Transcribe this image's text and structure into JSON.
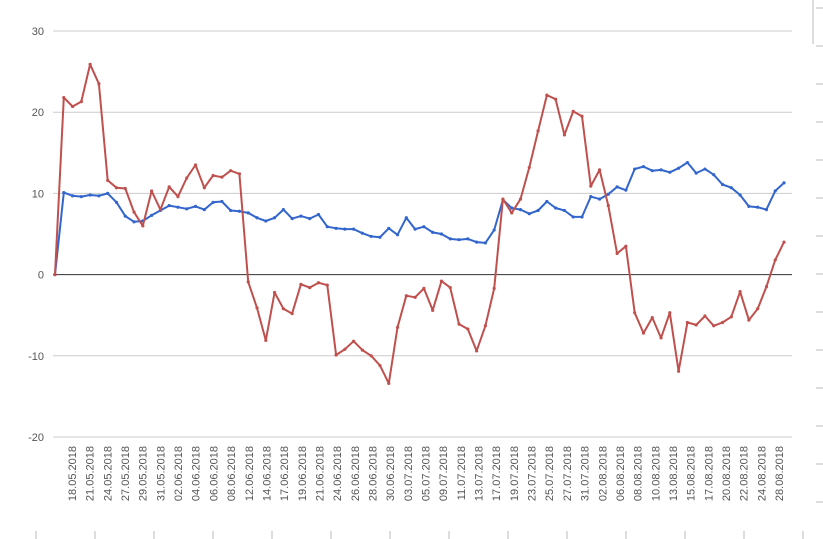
{
  "chart_data": {
    "type": "line",
    "title": "",
    "xlabel": "",
    "ylabel": "",
    "ylim": [
      -20,
      30
    ],
    "yticks": [
      -20,
      -10,
      0,
      10,
      20,
      30
    ],
    "grid": true,
    "legend": "none",
    "x_tick_labels": [
      "18.05.2018",
      "21.05.2018",
      "24.05.2018",
      "27.05.2018",
      "29.05.2018",
      "31.05.2018",
      "02.06.2018",
      "04.06.2018",
      "06.06.2018",
      "08.06.2018",
      "12.06.2018",
      "14.06.2018",
      "17.06.2018",
      "19.06.2018",
      "21.06.2018",
      "24.06.2018",
      "26.06.2018",
      "28.06.2018",
      "30.06.2018",
      "03.07.2018",
      "05.07.2018",
      "09.07.2018",
      "11.07.2018",
      "13.07.2018",
      "17.07.2018",
      "19.07.2018",
      "23.07.2018",
      "25.07.2018",
      "27.07.2018",
      "31.07.2018",
      "02.08.2018",
      "06.08.2018",
      "08.08.2018",
      "10.08.2018",
      "13.08.2018",
      "15.08.2018",
      "17.08.2018",
      "20.08.2018",
      "22.08.2018",
      "24.08.2018",
      "28.08.2018"
    ],
    "series": [
      {
        "color": "#3366cc",
        "values": [
          0,
          10.1,
          9.7,
          9.6,
          9.8,
          9.7,
          10.0,
          8.9,
          7.2,
          6.5,
          6.6,
          7.3,
          7.9,
          8.5,
          8.3,
          8.1,
          8.4,
          8.0,
          8.9,
          9.0,
          7.9,
          7.8,
          7.6,
          7.0,
          6.6,
          7.0,
          8.0,
          6.9,
          7.2,
          6.9,
          7.4,
          5.9,
          5.7,
          5.6,
          5.6,
          5.1,
          4.7,
          4.6,
          5.7,
          4.9,
          7.0,
          5.6,
          5.9,
          5.2,
          5.0,
          4.4,
          4.3,
          4.4,
          4.0,
          3.9,
          5.5,
          9.2,
          8.2,
          8.0,
          7.5,
          7.9,
          9.0,
          8.2,
          7.9,
          7.1,
          7.1,
          9.6,
          9.3,
          9.9,
          10.8,
          10.4,
          13.0,
          13.3,
          12.8,
          12.9,
          12.6,
          13.1,
          13.8,
          12.5,
          13.0,
          12.3,
          11.1,
          10.7,
          9.8,
          8.4,
          8.3,
          8.0,
          10.3,
          11.3
        ]
      },
      {
        "color": "#c0504d",
        "values": [
          0,
          21.8,
          20.7,
          21.3,
          25.9,
          23.5,
          11.6,
          10.7,
          10.6,
          7.7,
          6.0,
          10.3,
          8.0,
          10.8,
          9.6,
          11.9,
          13.5,
          10.7,
          12.2,
          12.0,
          12.8,
          12.4,
          -0.9,
          -4.1,
          -8.1,
          -2.2,
          -4.2,
          -4.8,
          -1.2,
          -1.6,
          -1.0,
          -1.3,
          -9.9,
          -9.2,
          -8.2,
          -9.3,
          -10.0,
          -11.2,
          -13.4,
          -6.5,
          -2.6,
          -2.8,
          -1.7,
          -4.4,
          -0.8,
          -1.6,
          -6.1,
          -6.7,
          -9.4,
          -6.3,
          -1.7,
          9.3,
          7.6,
          9.3,
          13.2,
          17.7,
          22.1,
          21.6,
          17.2,
          20.1,
          19.5,
          10.9,
          12.9,
          8.5,
          2.6,
          3.5,
          -4.7,
          -7.2,
          -5.3,
          -7.8,
          -4.7,
          -11.9,
          -5.9,
          -6.2,
          -5.1,
          -6.3,
          -5.9,
          -5.2,
          -2.1,
          -5.6,
          -4.2,
          -1.5,
          1.8,
          4.0
        ]
      }
    ]
  }
}
